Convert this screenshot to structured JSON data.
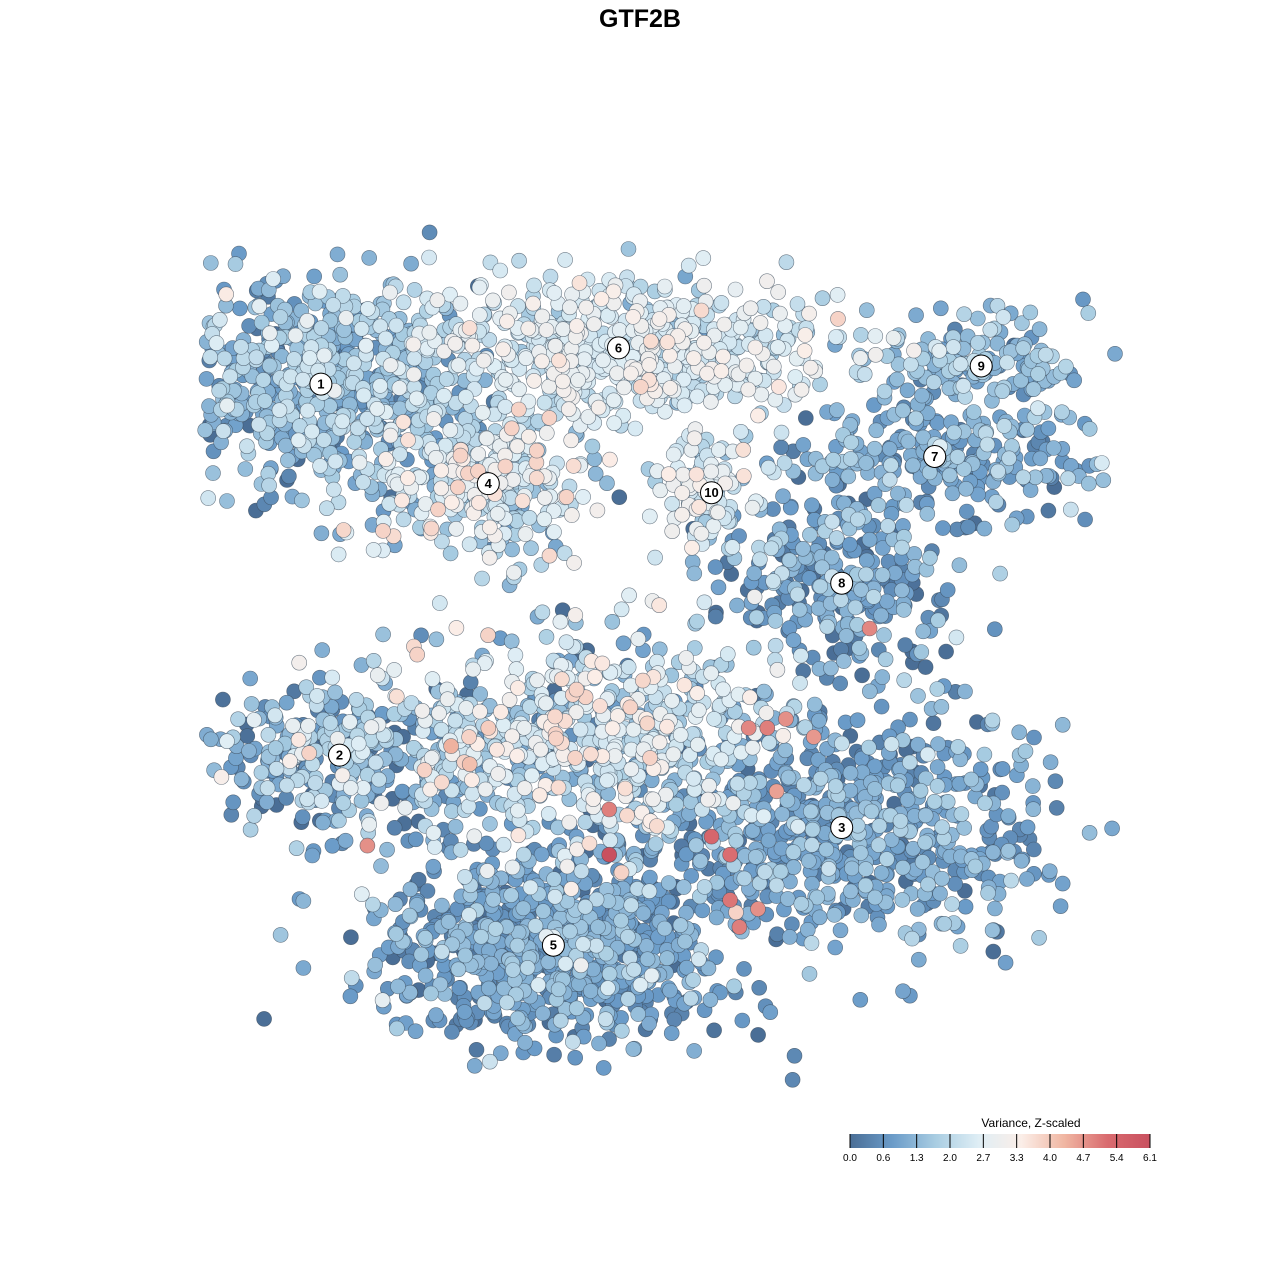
{
  "chart_data": {
    "type": "scatter",
    "title": "GTF2B",
    "xlabel": "",
    "ylabel": "",
    "xlim": [
      0,
      100
    ],
    "ylim": [
      0,
      100
    ],
    "grid": false,
    "color_scale": {
      "title": "Variance, Z-scaled",
      "min": 0.0,
      "max": 6.1,
      "ticks": [
        "0.0",
        "0.6",
        "1.3",
        "2.0",
        "2.7",
        "3.3",
        "4.0",
        "4.7",
        "5.4",
        "6.1"
      ],
      "colors": [
        "#4a6e96",
        "#6b9cc9",
        "#a9cde2",
        "#dfeef5",
        "#fbeee8",
        "#f0b6a2",
        "#d96b6f",
        "#c9505f"
      ],
      "position": "bottom-right"
    },
    "clusters": [
      {
        "id": "1",
        "label": "1",
        "x": 13,
        "y": 78,
        "sx": 8.5,
        "sy": 6,
        "n": 700,
        "mean": 1.3,
        "sd": 0.65
      },
      {
        "id": "6",
        "label": "6",
        "x": 45,
        "y": 82,
        "sx": 12,
        "sy": 3.8,
        "n": 650,
        "mean": 2.5,
        "sd": 0.5
      },
      {
        "id": "4",
        "label": "4",
        "x": 31,
        "y": 67,
        "sx": 6,
        "sy": 4.5,
        "n": 320,
        "mean": 2.3,
        "sd": 0.8
      },
      {
        "id": "10",
        "label": "10",
        "x": 55,
        "y": 66,
        "sx": 3,
        "sy": 3,
        "n": 90,
        "mean": 2.6,
        "sd": 0.5
      },
      {
        "id": "9",
        "label": "9",
        "x": 84,
        "y": 80,
        "sx": 6,
        "sy": 2.6,
        "n": 150,
        "mean": 1.4,
        "sd": 0.5
      },
      {
        "id": "7",
        "label": "7",
        "x": 79,
        "y": 70,
        "sx": 9,
        "sy": 3,
        "n": 260,
        "mean": 1.1,
        "sd": 0.5
      },
      {
        "id": "8",
        "label": "8",
        "x": 69,
        "y": 56,
        "sx": 6.5,
        "sy": 4.5,
        "n": 270,
        "mean": 0.8,
        "sd": 0.7
      },
      {
        "id": "2",
        "label": "2",
        "x": 15,
        "y": 37,
        "sx": 7,
        "sy": 4.2,
        "n": 300,
        "mean": 1.2,
        "sd": 0.8
      },
      {
        "id": "center",
        "label": "",
        "x": 41,
        "y": 39,
        "sx": 11,
        "sy": 6,
        "n": 650,
        "mean": 2.2,
        "sd": 0.9
      },
      {
        "id": "3",
        "label": "3",
        "x": 69,
        "y": 29,
        "sx": 11,
        "sy": 6.5,
        "n": 700,
        "mean": 1.0,
        "sd": 0.55
      },
      {
        "id": "5",
        "label": "5",
        "x": 38,
        "y": 16,
        "sx": 9.5,
        "sy": 5.2,
        "n": 800,
        "mean": 0.95,
        "sd": 0.55
      }
    ],
    "high_variance_spots": [
      {
        "x": 27,
        "y": 38,
        "value": 4.4
      },
      {
        "x": 29,
        "y": 36,
        "value": 4.2
      },
      {
        "x": 31,
        "y": 40,
        "value": 4.0
      },
      {
        "x": 26,
        "y": 34,
        "value": 3.8
      },
      {
        "x": 59,
        "y": 40,
        "value": 4.9
      },
      {
        "x": 61,
        "y": 40,
        "value": 5.0
      },
      {
        "x": 63,
        "y": 41,
        "value": 4.8
      },
      {
        "x": 66,
        "y": 39,
        "value": 4.7
      },
      {
        "x": 44,
        "y": 26,
        "value": 6.1
      },
      {
        "x": 44,
        "y": 31,
        "value": 5.0
      },
      {
        "x": 55,
        "y": 28,
        "value": 5.4
      },
      {
        "x": 57,
        "y": 26,
        "value": 5.2
      },
      {
        "x": 58,
        "y": 18,
        "value": 5.0
      },
      {
        "x": 57,
        "y": 21,
        "value": 5.1
      },
      {
        "x": 60,
        "y": 20,
        "value": 4.8
      },
      {
        "x": 62,
        "y": 33,
        "value": 4.6
      },
      {
        "x": 72,
        "y": 51,
        "value": 4.9
      },
      {
        "x": 18,
        "y": 27,
        "value": 4.8
      },
      {
        "x": 23,
        "y": 49,
        "value": 3.8
      }
    ]
  }
}
